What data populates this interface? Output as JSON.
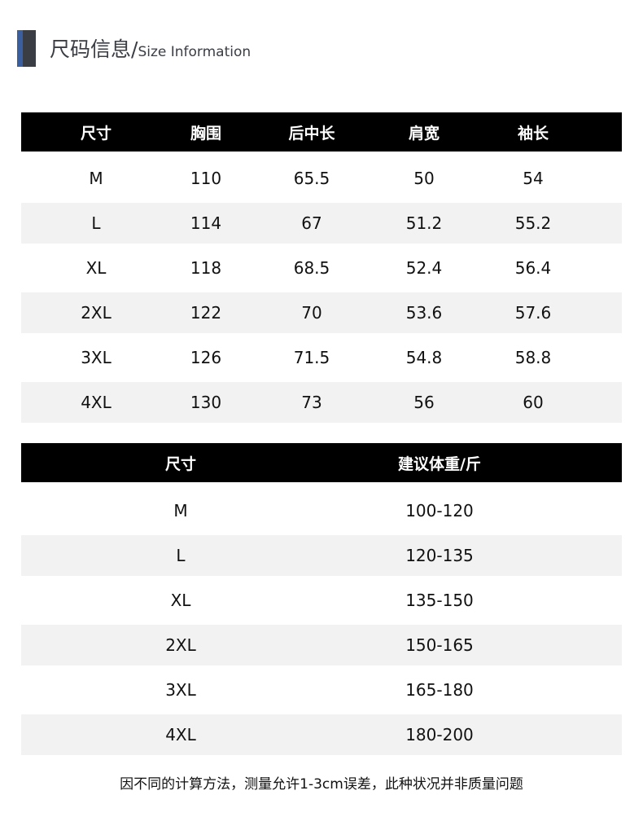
{
  "header": {
    "title_cn": "尺码信息/",
    "title_en": "Size Information",
    "accent_color": "#3b5f9e"
  },
  "size_table": {
    "columns": [
      "尺寸",
      "胸围",
      "后中长",
      "肩宽",
      "袖长"
    ],
    "rows": [
      [
        "M",
        "110",
        "65.5",
        "50",
        "54"
      ],
      [
        "L",
        "114",
        "67",
        "51.2",
        "55.2"
      ],
      [
        "XL",
        "118",
        "68.5",
        "52.4",
        "56.4"
      ],
      [
        "2XL",
        "122",
        "70",
        "53.6",
        "57.6"
      ],
      [
        "3XL",
        "126",
        "71.5",
        "54.8",
        "58.8"
      ],
      [
        "4XL",
        "130",
        "73",
        "56",
        "60"
      ]
    ]
  },
  "weight_table": {
    "columns": [
      "尺寸",
      "建议体重/斤"
    ],
    "rows": [
      [
        "M",
        "100-120"
      ],
      [
        "L",
        "120-135"
      ],
      [
        "XL",
        "135-150"
      ],
      [
        "2XL",
        "150-165"
      ],
      [
        "3XL",
        "165-180"
      ],
      [
        "4XL",
        "180-200"
      ]
    ]
  },
  "footnote": "因不同的计算方法，测量允许1-3cm误差，此种状况并非质量问题"
}
